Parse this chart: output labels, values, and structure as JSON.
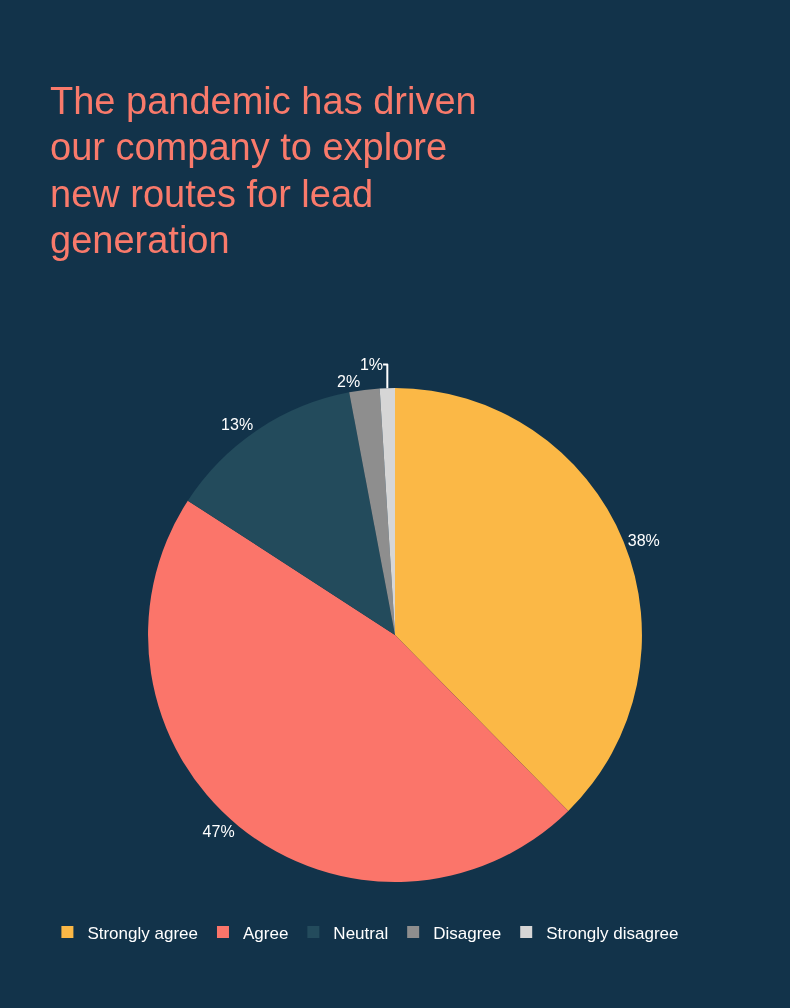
{
  "chart_data": {
    "type": "pie",
    "title": "The pandemic has driven our company to explore new routes for lead generation",
    "categories": [
      "Strongly agree",
      "Agree",
      "Neutral",
      "Disagree",
      "Strongly disagree"
    ],
    "values": [
      38,
      47,
      13,
      2,
      1
    ],
    "value_labels": [
      "38%",
      "47%",
      "13%",
      "2%",
      "1%"
    ],
    "colors": [
      "#fbb846",
      "#fb756a",
      "#234b5c",
      "#8e8e8e",
      "#d6d6d6"
    ],
    "legend": "bottom"
  }
}
